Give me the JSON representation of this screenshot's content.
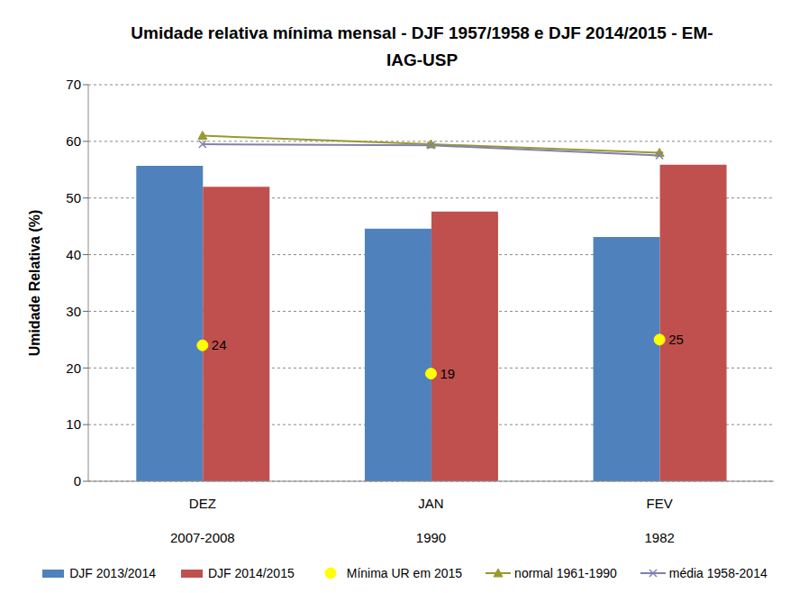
{
  "chart_data": {
    "type": "bar",
    "title": "Umidade relativa mínima mensal - DJF 1957/1958 e DJF 2014/2015 - EM-IAG-USP",
    "y_label": "Umidade Relativa (%)",
    "categories": [
      "DEZ",
      "JAN",
      "FEV"
    ],
    "sub_categories": [
      "2007-2008",
      "1990",
      "1982"
    ],
    "ylim": [
      0,
      70
    ],
    "yticks": [
      0,
      10,
      20,
      30,
      40,
      50,
      60,
      70
    ],
    "grid": true,
    "legend": "bottom",
    "series": [
      {
        "name": "DJF 2013/2014",
        "type": "bar",
        "color": "#4f81bd",
        "values": [
          55.7,
          44.6,
          43.1
        ]
      },
      {
        "name": "DJF 2014/2015",
        "type": "bar",
        "color": "#c0504d",
        "values": [
          52,
          47.6,
          55.9
        ]
      },
      {
        "name": "Mínima UR em 2015",
        "type": "scatter",
        "color": "#ffff00",
        "marker": "circle",
        "data_labels": true,
        "values": [
          24,
          19,
          25
        ]
      },
      {
        "name": "normal 1961-1990",
        "type": "line",
        "color": "#99992e",
        "marker": "triangle",
        "values": [
          61,
          59.5,
          58
        ]
      },
      {
        "name": "média 1958-2014",
        "type": "line",
        "color": "#8080b0",
        "marker": "x",
        "values": [
          59.5,
          59.3,
          57.5
        ]
      }
    ]
  }
}
